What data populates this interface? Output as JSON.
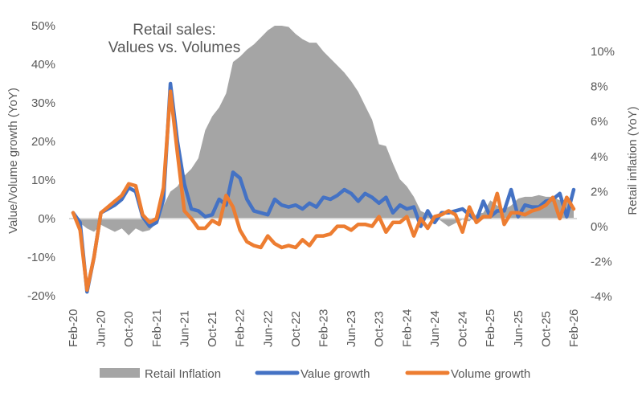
{
  "chart_data": {
    "type": "line",
    "title": [
      "Retail sales:",
      "Values vs. Volumes"
    ],
    "ylabel": "Value/Volume  growth (YoY)",
    "y2label": "Retail inflation (YoY)",
    "xlabel": "",
    "ylim": [
      -20,
      50
    ],
    "y2lim": [
      -4,
      10
    ],
    "yticks": [
      "50%",
      "40%",
      "30%",
      "20%",
      "10%",
      "0%",
      "-10%",
      "-20%"
    ],
    "ytick_values": [
      50,
      40,
      30,
      20,
      10,
      0,
      -10,
      -20
    ],
    "y2ticks": [
      "10%",
      "8%",
      "6%",
      "4%",
      "2%",
      "0%",
      "-2%",
      "-4%"
    ],
    "y2tick_values": [
      10,
      8,
      6,
      4,
      2,
      0,
      -2,
      -4
    ],
    "xtick_labels": [
      "Feb-20",
      "Jun-20",
      "Oct-20",
      "Feb-21",
      "Jun-21",
      "Oct-21",
      "Feb-22",
      "Jun-22",
      "Oct-22",
      "Feb-23",
      "Jun-23",
      "Oct-23",
      "Feb-24",
      "Jun-24",
      "Oct-24",
      "Feb-25",
      "Jun-25",
      "Oct-25",
      "Feb-26"
    ],
    "x_start": "Feb-20",
    "x_end": "Feb-26",
    "legend_position": "bottom",
    "grid": false,
    "series": [
      {
        "name": "Retail Inflation",
        "type": "area",
        "axis": "right",
        "color": "#a5a5a5",
        "values": [
          0.5,
          0.2,
          -0.1,
          -0.3,
          0.1,
          -0.1,
          -0.3,
          -0.1,
          -0.5,
          -0.1,
          -0.3,
          -0.2,
          0.2,
          1.2,
          2.0,
          2.3,
          2.9,
          3.3,
          3.9,
          5.5,
          6.3,
          6.8,
          7.6,
          9.4,
          9.7,
          10.1,
          10.4,
          10.8,
          11.2,
          11.5,
          11.6,
          11.4,
          11.0,
          10.7,
          10.5,
          10.5,
          10.0,
          9.6,
          9.2,
          8.8,
          8.3,
          7.7,
          6.9,
          6.1,
          4.7,
          4.6,
          3.6,
          2.7,
          2.3,
          1.7,
          0.9,
          0.7,
          0.6,
          0.3,
          0.0,
          0.2,
          0.4,
          0.3,
          0.7,
          0.8,
          1.5,
          1.2,
          1.0,
          1.2,
          1.6,
          1.7,
          1.7,
          1.8,
          1.7,
          1.7,
          1.5,
          1.5,
          1.2
        ]
      },
      {
        "name": "Value growth",
        "type": "line",
        "axis": "left",
        "color": "#4472c4",
        "values": [
          1.5,
          -1,
          -19,
          -10,
          1.5,
          2.5,
          3.5,
          5,
          8,
          7,
          0.5,
          -2,
          -1,
          5,
          35,
          20,
          9,
          2.5,
          2,
          0.5,
          1,
          5,
          3.5,
          12,
          10.5,
          5,
          2,
          1.5,
          1,
          5,
          3.5,
          3,
          3.5,
          2.5,
          4,
          3,
          5.5,
          5,
          6,
          7.5,
          6.5,
          4.5,
          6.5,
          5.5,
          4,
          5.5,
          1.5,
          3.5,
          2.5,
          3,
          -2,
          2,
          -1,
          1.5,
          1.5,
          2,
          2.5,
          1,
          -0.5,
          4.5,
          0.5,
          2,
          2,
          7.5,
          0.5,
          3.5,
          3,
          3,
          4.5,
          5,
          6.5,
          0.5,
          7.5
        ]
      },
      {
        "name": "Volume growth",
        "type": "line",
        "axis": "left",
        "color": "#ed7d31",
        "values": [
          1.5,
          -3,
          -18.5,
          -10,
          1.5,
          3,
          4.5,
          6,
          9,
          8.5,
          1,
          -1,
          0,
          8,
          33,
          17,
          2,
          0,
          -2.5,
          -2.5,
          -0.5,
          -1.5,
          6,
          3,
          -3,
          -6,
          -7,
          -7.5,
          -4.5,
          -6.5,
          -7.5,
          -7,
          -7.5,
          -5.5,
          -7,
          -4.5,
          -4.5,
          -4,
          -2,
          -2,
          -3,
          -1.5,
          -1.5,
          -2,
          0.5,
          -3.5,
          -1,
          -1,
          0.5,
          -4.5,
          0,
          -2.5,
          0.5,
          1,
          2,
          1,
          -3.5,
          3,
          -1,
          0.5,
          0.5,
          6.5,
          -1.5,
          1.5,
          1.5,
          1,
          2,
          2.5,
          3.5,
          5.5,
          0,
          5.5,
          2.5
        ]
      }
    ]
  },
  "legend": {
    "items": [
      {
        "label": "Retail Inflation",
        "kind": "area",
        "color": "#a5a5a5"
      },
      {
        "label": "Value growth",
        "kind": "line",
        "color": "#4472c4"
      },
      {
        "label": "Volume growth",
        "kind": "line",
        "color": "#ed7d31"
      }
    ]
  }
}
